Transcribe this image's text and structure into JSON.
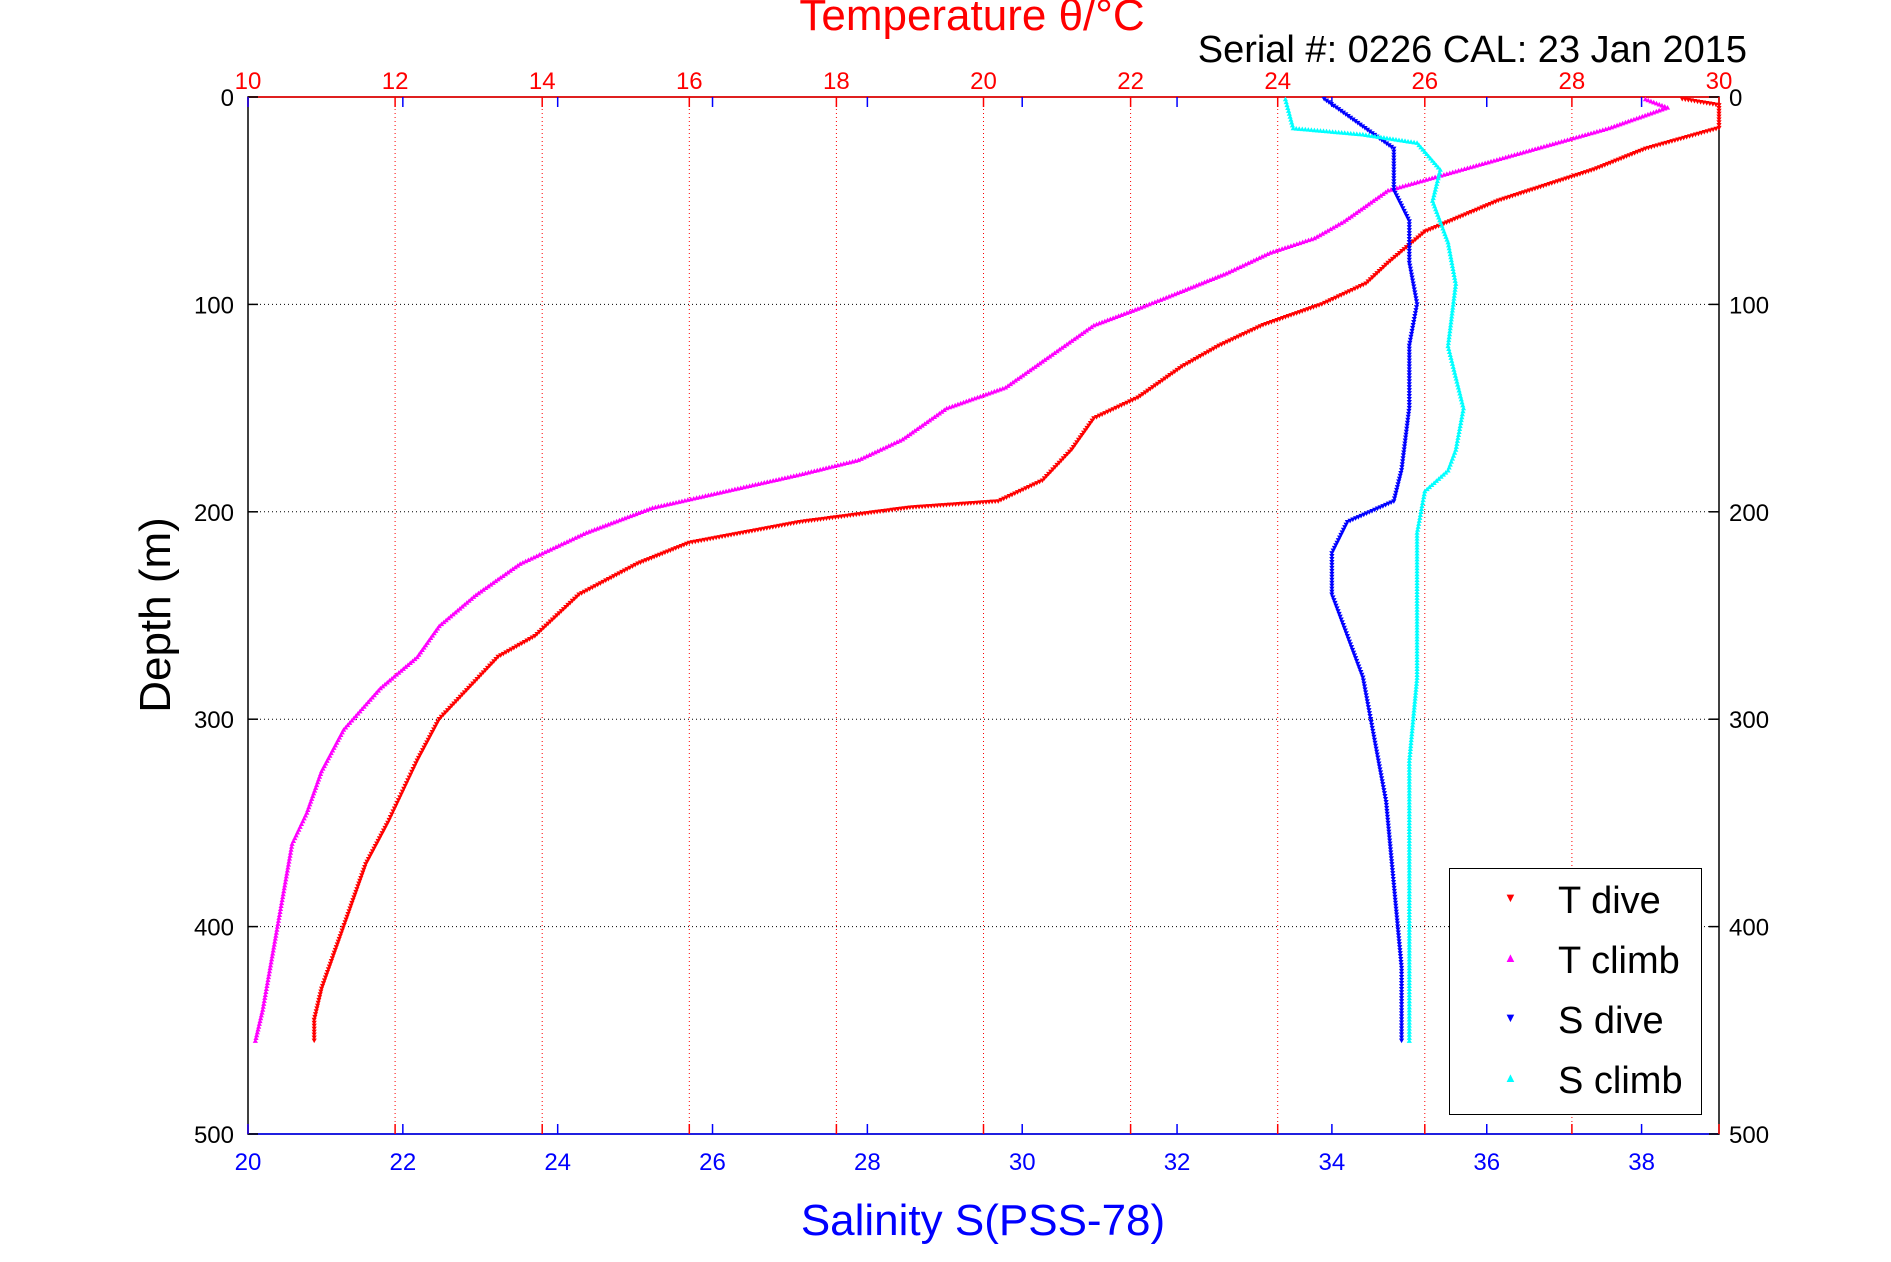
{
  "chart_data": {
    "type": "scatter",
    "title": "Temperature θ/°C",
    "subtitle": "Serial #: 0226  CAL: 23 Jan 2015",
    "xlabel": "Salinity S(PSS-78)",
    "ylabel": "Depth (m)",
    "x_bottom": {
      "label": "Salinity S(PSS-78)",
      "range": [
        20,
        39
      ],
      "ticks": [
        20,
        22,
        24,
        26,
        28,
        30,
        32,
        34,
        36,
        38
      ]
    },
    "x_top": {
      "label": "Temperature θ/°C",
      "range": [
        10,
        30
      ],
      "ticks": [
        10,
        12,
        14,
        16,
        18,
        20,
        22,
        24,
        26,
        28,
        30
      ]
    },
    "y": {
      "label": "Depth (m)",
      "range": [
        0,
        500
      ],
      "reversed": true,
      "ticks": [
        0,
        100,
        200,
        300,
        400,
        500
      ]
    },
    "grid": true,
    "legend_position": "bottom-right",
    "colors": {
      "temperature_axis": "#ff0000",
      "salinity_axis": "#0000ff"
    },
    "series": [
      {
        "name": "T dive",
        "axis": "temperature",
        "marker": "triangle-down",
        "color": "#ff0000",
        "points": [
          [
            29.5,
            1
          ],
          [
            30.0,
            4
          ],
          [
            30.0,
            15
          ],
          [
            29.0,
            25
          ],
          [
            28.3,
            35
          ],
          [
            27.0,
            50
          ],
          [
            26.0,
            65
          ],
          [
            25.5,
            80
          ],
          [
            25.2,
            90
          ],
          [
            24.6,
            100
          ],
          [
            23.8,
            110
          ],
          [
            23.2,
            120
          ],
          [
            22.7,
            130
          ],
          [
            22.1,
            145
          ],
          [
            21.5,
            155
          ],
          [
            21.2,
            170
          ],
          [
            20.8,
            185
          ],
          [
            20.2,
            195
          ],
          [
            19.0,
            198
          ],
          [
            17.5,
            205
          ],
          [
            16.0,
            215
          ],
          [
            15.3,
            225
          ],
          [
            14.5,
            240
          ],
          [
            13.9,
            260
          ],
          [
            13.4,
            270
          ],
          [
            13.0,
            285
          ],
          [
            12.6,
            300
          ],
          [
            12.3,
            320
          ],
          [
            12.1,
            335
          ],
          [
            11.9,
            350
          ],
          [
            11.6,
            370
          ],
          [
            11.4,
            390
          ],
          [
            11.2,
            410
          ],
          [
            11.0,
            430
          ],
          [
            10.9,
            445
          ],
          [
            10.9,
            455
          ]
        ]
      },
      {
        "name": "T climb",
        "axis": "temperature",
        "marker": "triangle-up",
        "color": "#ff00ff",
        "points": [
          [
            29.0,
            1
          ],
          [
            29.3,
            5
          ],
          [
            28.5,
            15
          ],
          [
            27.5,
            25
          ],
          [
            26.5,
            35
          ],
          [
            25.5,
            45
          ],
          [
            24.9,
            60
          ],
          [
            24.5,
            68
          ],
          [
            23.9,
            75
          ],
          [
            23.3,
            85
          ],
          [
            22.6,
            95
          ],
          [
            22.1,
            102
          ],
          [
            21.5,
            110
          ],
          [
            20.9,
            125
          ],
          [
            20.3,
            140
          ],
          [
            19.5,
            150
          ],
          [
            18.9,
            165
          ],
          [
            18.3,
            175
          ],
          [
            17.5,
            182
          ],
          [
            16.5,
            190
          ],
          [
            15.5,
            198
          ],
          [
            14.6,
            210
          ],
          [
            13.7,
            225
          ],
          [
            13.1,
            240
          ],
          [
            12.6,
            255
          ],
          [
            12.3,
            270
          ],
          [
            11.8,
            285
          ],
          [
            11.3,
            305
          ],
          [
            11.0,
            325
          ],
          [
            10.8,
            345
          ],
          [
            10.6,
            360
          ],
          [
            10.5,
            380
          ],
          [
            10.4,
            400
          ],
          [
            10.3,
            420
          ],
          [
            10.2,
            440
          ],
          [
            10.1,
            455
          ]
        ]
      },
      {
        "name": "S dive",
        "axis": "salinity",
        "marker": "triangle-down",
        "color": "#0000ff",
        "points": [
          [
            33.9,
            1
          ],
          [
            34.8,
            25
          ],
          [
            34.8,
            45
          ],
          [
            35.0,
            60
          ],
          [
            35.0,
            80
          ],
          [
            35.1,
            100
          ],
          [
            35.0,
            120
          ],
          [
            35.0,
            150
          ],
          [
            34.9,
            180
          ],
          [
            34.8,
            195
          ],
          [
            34.2,
            205
          ],
          [
            34.0,
            220
          ],
          [
            34.0,
            240
          ],
          [
            34.2,
            260
          ],
          [
            34.4,
            280
          ],
          [
            34.5,
            300
          ],
          [
            34.7,
            340
          ],
          [
            34.8,
            380
          ],
          [
            34.9,
            420
          ],
          [
            34.9,
            455
          ]
        ]
      },
      {
        "name": "S climb",
        "axis": "salinity",
        "marker": "triangle-up",
        "color": "#00ffff",
        "points": [
          [
            33.4,
            1
          ],
          [
            33.5,
            15
          ],
          [
            34.4,
            18
          ],
          [
            35.1,
            22
          ],
          [
            35.4,
            35
          ],
          [
            35.3,
            50
          ],
          [
            35.5,
            70
          ],
          [
            35.6,
            90
          ],
          [
            35.5,
            120
          ],
          [
            35.7,
            150
          ],
          [
            35.6,
            170
          ],
          [
            35.5,
            180
          ],
          [
            35.2,
            190
          ],
          [
            35.1,
            210
          ],
          [
            35.1,
            240
          ],
          [
            35.1,
            280
          ],
          [
            35.0,
            320
          ],
          [
            35.0,
            360
          ],
          [
            35.0,
            400
          ],
          [
            35.0,
            430
          ],
          [
            35.0,
            455
          ]
        ]
      }
    ]
  }
}
